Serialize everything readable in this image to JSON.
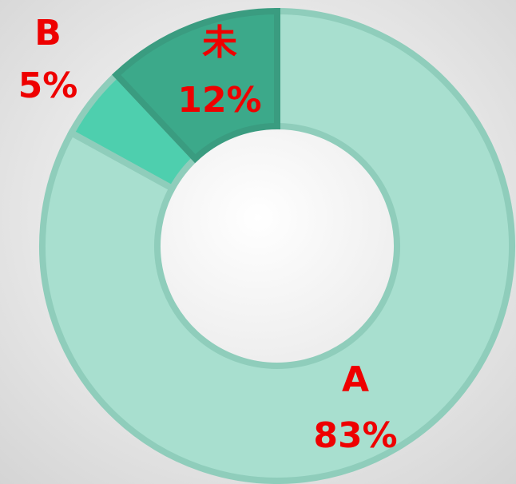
{
  "chart_data": {
    "type": "donut",
    "categories": [
      "A",
      "B",
      "未"
    ],
    "values": [
      83,
      5,
      12
    ],
    "value_labels": [
      "83%",
      "5%",
      "12%"
    ],
    "colors": [
      "#a8dfcf",
      "#4ecfae",
      "#3ca98a"
    ]
  }
}
